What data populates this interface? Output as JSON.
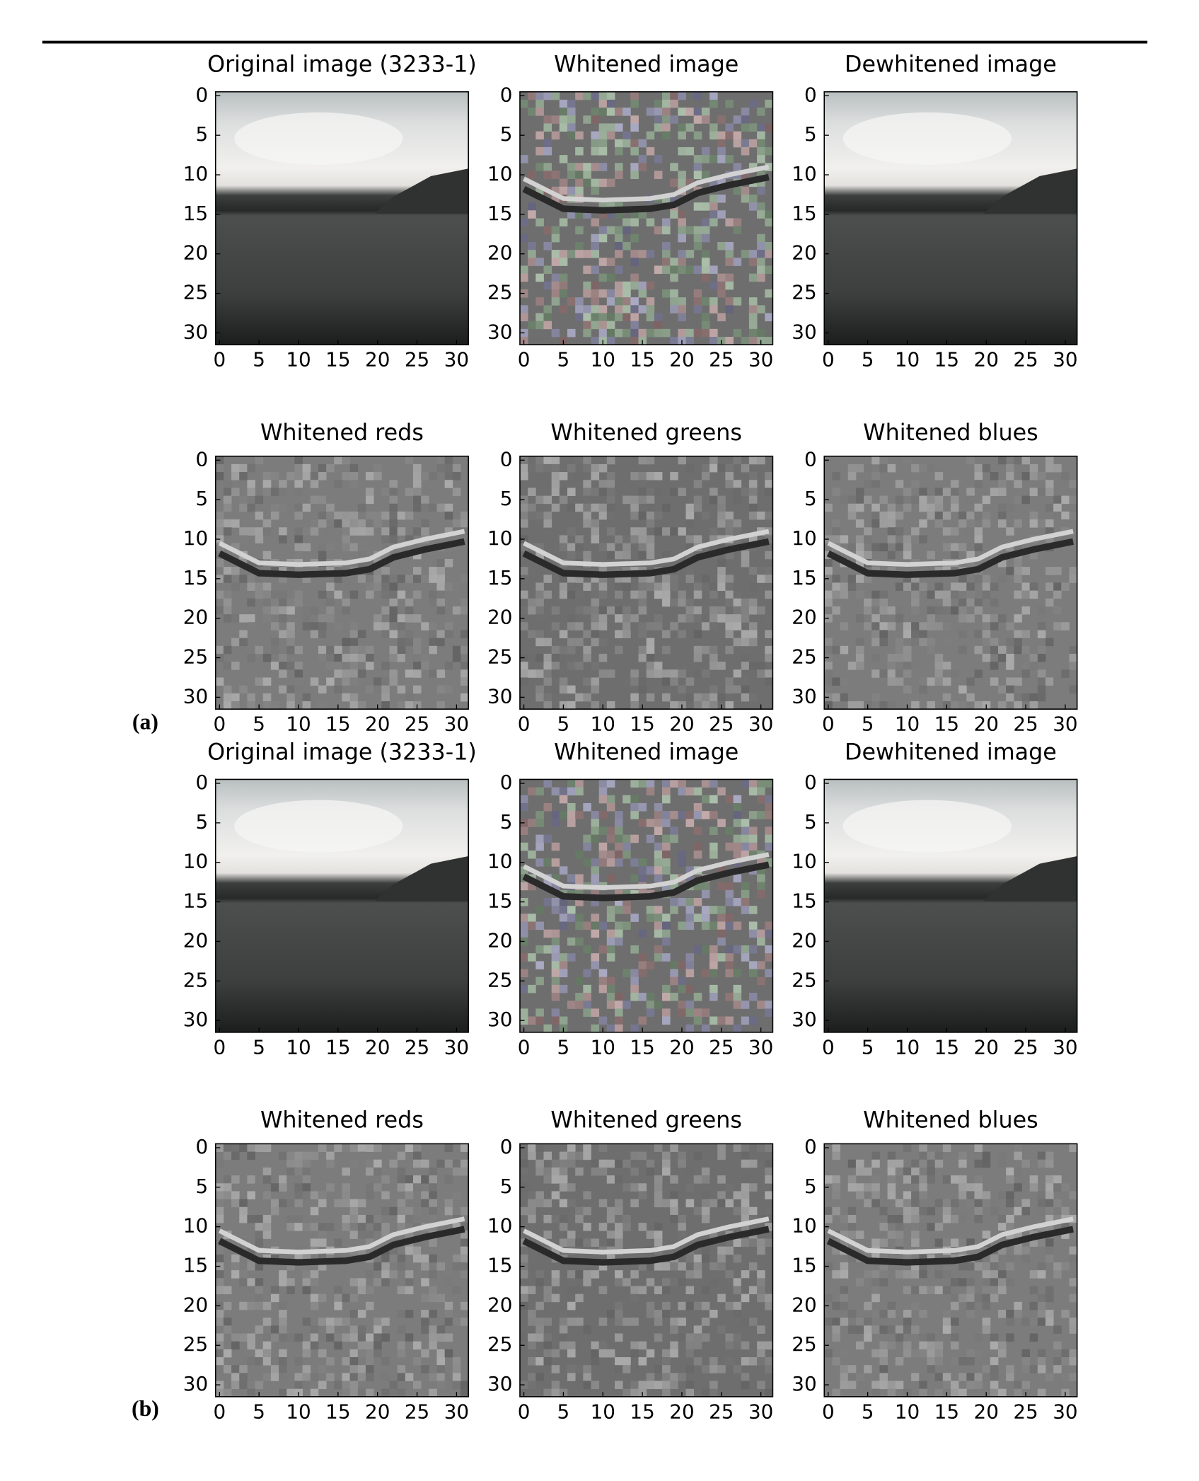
{
  "figures": [
    {
      "label": "(a)",
      "rows": [
        {
          "panels": [
            {
              "title": "Original image (3233-1)"
            },
            {
              "title": "Whitened image"
            },
            {
              "title": "Dewhitened image"
            }
          ]
        },
        {
          "panels": [
            {
              "title": "Whitened reds"
            },
            {
              "title": "Whitened greens"
            },
            {
              "title": "Whitened blues"
            }
          ]
        }
      ]
    },
    {
      "label": "(b)",
      "rows": [
        {
          "panels": [
            {
              "title": "Original image (3233-1)"
            },
            {
              "title": "Whitened image"
            },
            {
              "title": "Dewhitened image"
            }
          ]
        },
        {
          "panels": [
            {
              "title": "Whitened reds"
            },
            {
              "title": "Whitened greens"
            },
            {
              "title": "Whitened blues"
            }
          ]
        }
      ]
    }
  ],
  "axis_ticks": [
    0,
    5,
    10,
    15,
    20,
    25,
    30
  ]
}
